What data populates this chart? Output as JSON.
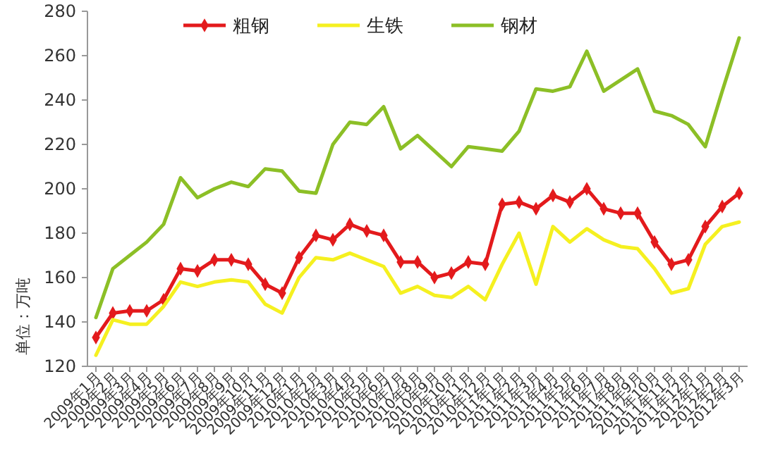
{
  "chart_data": {
    "type": "line",
    "ylabel": "单位：万吨",
    "categories": [
      "2009年1月",
      "2009年2月",
      "2009年3月",
      "2009年4月",
      "2009年5月",
      "2009年6月",
      "2009年7月",
      "2009年8月",
      "2009年9月",
      "2009年10月",
      "2009年11月",
      "2009年12月",
      "2010年1月",
      "2010年2月",
      "2010年3月",
      "2010年4月",
      "2010年5月",
      "2010年6月",
      "2010年7月",
      "2010年8月",
      "2010年9月",
      "2010年10月",
      "2010年11月",
      "2010年12月",
      "2011年1月",
      "2011年2月",
      "2011年3月",
      "2011年4月",
      "2011年5月",
      "2011年6月",
      "2011年7月",
      "2011年8月",
      "2011年9月",
      "2011年10月",
      "2011年11月",
      "2011年12月",
      "2012年1月",
      "2012年2月",
      "2012年3月"
    ],
    "series": [
      {
        "name": "粗钢",
        "color": "#e31a1c",
        "marker": "diamond",
        "values": [
          133,
          144,
          145,
          145,
          150,
          164,
          163,
          168,
          168,
          166,
          157,
          153,
          169,
          179,
          177,
          184,
          181,
          179,
          167,
          167,
          160,
          162,
          167,
          166,
          193,
          194,
          191,
          197,
          194,
          200,
          191,
          189,
          189,
          176,
          166,
          168,
          183,
          192,
          198
        ]
      },
      {
        "name": "生铁",
        "color": "#f5f020",
        "marker": "none",
        "values": [
          125,
          141,
          139,
          139,
          147,
          158,
          156,
          158,
          159,
          158,
          148,
          144,
          160,
          169,
          168,
          171,
          168,
          165,
          153,
          156,
          152,
          151,
          156,
          150,
          166,
          180,
          157,
          183,
          176,
          182,
          177,
          174,
          173,
          164,
          153,
          155,
          175,
          183,
          185
        ]
      },
      {
        "name": "钢材",
        "color": "#8cbf26",
        "marker": "none",
        "values": [
          142,
          164,
          170,
          176,
          184,
          205,
          196,
          200,
          203,
          201,
          209,
          208,
          199,
          198,
          220,
          230,
          229,
          237,
          218,
          224,
          217,
          210,
          219,
          218,
          217,
          226,
          245,
          244,
          246,
          262,
          244,
          249,
          254,
          235,
          233,
          229,
          219,
          244,
          268
        ]
      }
    ],
    "ylim": [
      120,
      280
    ],
    "yticks": [
      120,
      140,
      160,
      180,
      200,
      220,
      240,
      260,
      280
    ],
    "grid": false,
    "legend": "top"
  }
}
